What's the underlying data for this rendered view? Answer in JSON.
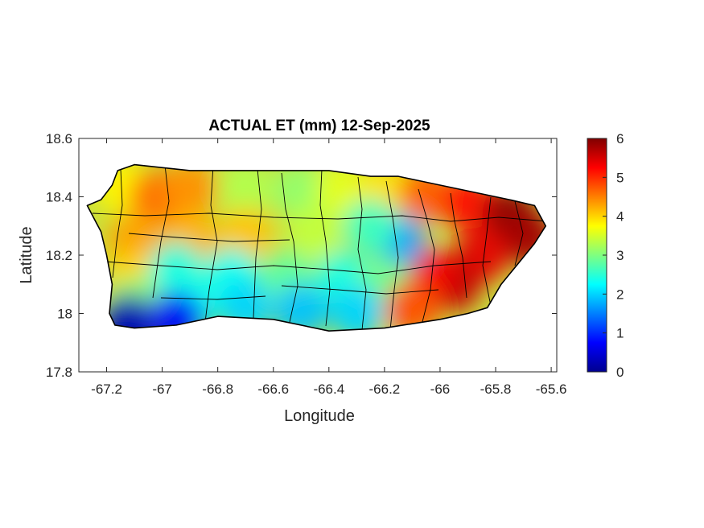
{
  "chart_data": {
    "type": "heatmap",
    "title": "ACTUAL ET (mm) 12-Sep-2025",
    "xlabel": "Longitude",
    "ylabel": "Latitude",
    "xlim": [
      -67.3,
      -65.58
    ],
    "ylim": [
      17.8,
      18.6
    ],
    "xticks": [
      -67.2,
      -67,
      -66.8,
      -66.6,
      -66.4,
      -66.2,
      -66,
      -65.8,
      -65.6
    ],
    "xtick_labels": [
      "-67.2",
      "-67",
      "-66.8",
      "-66.6",
      "-66.4",
      "-66.2",
      "-66",
      "-65.8",
      "-65.6"
    ],
    "yticks": [
      17.8,
      18,
      18.2,
      18.4,
      18.6
    ],
    "ytick_labels": [
      "17.8",
      "18",
      "18.2",
      "18.4",
      "18.6"
    ],
    "colormap": "jet",
    "colorbar": {
      "range": [
        0,
        6
      ],
      "ticks": [
        0,
        1,
        2,
        3,
        4,
        5,
        6
      ],
      "tick_labels": [
        "0",
        "1",
        "2",
        "3",
        "4",
        "5",
        "6"
      ],
      "placement": "right"
    },
    "grid": false,
    "island_outline": [
      [
        -67.27,
        18.37
      ],
      [
        -67.22,
        18.39
      ],
      [
        -67.18,
        18.44
      ],
      [
        -67.16,
        18.49
      ],
      [
        -67.1,
        18.51
      ],
      [
        -66.9,
        18.49
      ],
      [
        -66.6,
        18.49
      ],
      [
        -66.4,
        18.49
      ],
      [
        -66.25,
        18.47
      ],
      [
        -66.15,
        18.47
      ],
      [
        -66.05,
        18.45
      ],
      [
        -65.95,
        18.43
      ],
      [
        -65.85,
        18.41
      ],
      [
        -65.75,
        18.39
      ],
      [
        -65.66,
        18.37
      ],
      [
        -65.62,
        18.3
      ],
      [
        -65.66,
        18.24
      ],
      [
        -65.72,
        18.17
      ],
      [
        -65.78,
        18.1
      ],
      [
        -65.83,
        18.02
      ],
      [
        -65.9,
        18
      ],
      [
        -66.0,
        17.98
      ],
      [
        -66.2,
        17.95
      ],
      [
        -66.4,
        17.94
      ],
      [
        -66.6,
        17.98
      ],
      [
        -66.8,
        17.99
      ],
      [
        -66.95,
        17.96
      ],
      [
        -67.1,
        17.95
      ],
      [
        -67.17,
        17.96
      ],
      [
        -67.19,
        18.0
      ],
      [
        -67.18,
        18.1
      ],
      [
        -67.2,
        18.2
      ],
      [
        -67.22,
        18.28
      ],
      [
        -67.27,
        18.37
      ]
    ],
    "et_samples": [
      {
        "lon": -67.15,
        "lat": 18.44,
        "et": 3.8
      },
      {
        "lon": -67.02,
        "lat": 18.4,
        "et": 4.6
      },
      {
        "lon": -66.9,
        "lat": 18.43,
        "et": 4.4
      },
      {
        "lon": -66.7,
        "lat": 18.43,
        "et": 3.3
      },
      {
        "lon": -66.5,
        "lat": 18.42,
        "et": 3.1
      },
      {
        "lon": -66.35,
        "lat": 18.43,
        "et": 3.6
      },
      {
        "lon": -66.2,
        "lat": 18.42,
        "et": 3.9
      },
      {
        "lon": -66.05,
        "lat": 18.41,
        "et": 4.7
      },
      {
        "lon": -65.9,
        "lat": 18.38,
        "et": 5.2
      },
      {
        "lon": -65.75,
        "lat": 18.34,
        "et": 5.9
      },
      {
        "lon": -65.68,
        "lat": 18.26,
        "et": 5.8
      },
      {
        "lon": -65.85,
        "lat": 18.2,
        "et": 5.4
      },
      {
        "lon": -65.95,
        "lat": 18.1,
        "et": 5.6
      },
      {
        "lon": -66.05,
        "lat": 18.14,
        "et": 5.3
      },
      {
        "lon": -66.15,
        "lat": 18.25,
        "et": 1.7
      },
      {
        "lon": -66.25,
        "lat": 18.3,
        "et": 2.6
      },
      {
        "lon": -66.45,
        "lat": 18.28,
        "et": 3.4
      },
      {
        "lon": -66.7,
        "lat": 18.27,
        "et": 4.1
      },
      {
        "lon": -66.9,
        "lat": 18.26,
        "et": 4.2
      },
      {
        "lon": -67.1,
        "lat": 18.25,
        "et": 4.3
      },
      {
        "lon": -67.1,
        "lat": 18.12,
        "et": 4.0
      },
      {
        "lon": -66.95,
        "lat": 18.15,
        "et": 2.4
      },
      {
        "lon": -66.75,
        "lat": 18.13,
        "et": 2.3
      },
      {
        "lon": -66.55,
        "lat": 18.12,
        "et": 2.8
      },
      {
        "lon": -66.35,
        "lat": 18.12,
        "et": 2.4
      },
      {
        "lon": -66.2,
        "lat": 18.1,
        "et": 2.9
      },
      {
        "lon": -66.1,
        "lat": 18.02,
        "et": 4.8
      },
      {
        "lon": -66.3,
        "lat": 18.0,
        "et": 2.0
      },
      {
        "lon": -66.5,
        "lat": 18.01,
        "et": 1.9
      },
      {
        "lon": -66.7,
        "lat": 18.02,
        "et": 2.0
      },
      {
        "lon": -66.9,
        "lat": 18.02,
        "et": 2.3
      },
      {
        "lon": -67.1,
        "lat": 18.03,
        "et": 3.0
      },
      {
        "lon": -67.12,
        "lat": 17.97,
        "et": 0.3
      },
      {
        "lon": -66.95,
        "lat": 17.98,
        "et": 0.7
      }
    ]
  }
}
